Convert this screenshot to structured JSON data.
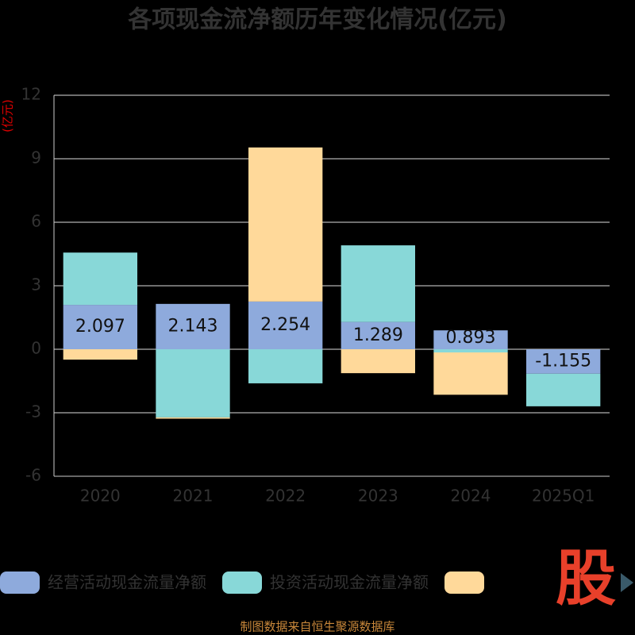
{
  "chart_data": {
    "type": "stacked_bar",
    "title": "各项现金流净额历年变化情况(亿元)",
    "y_label": "(亿元)",
    "categories": [
      "2020",
      "2021",
      "2022",
      "2023",
      "2024",
      "2025Q1"
    ],
    "series": [
      {
        "name": "经营活动现金流量净额",
        "color": "#8eaadc",
        "values": [
          2.097,
          2.143,
          2.254,
          1.289,
          0.893,
          -1.155
        ],
        "labels": true
      },
      {
        "name": "投资活动现金流量净额",
        "color": "#88d8d8",
        "values": [
          2.47,
          -3.22,
          -1.61,
          3.62,
          -0.15,
          -1.54
        ]
      },
      {
        "color": "#ffd99a",
        "values": [
          -0.49,
          -0.06,
          7.28,
          -1.13,
          -2.0,
          0
        ]
      }
    ],
    "ylim": [
      -6,
      12
    ],
    "yticks": [
      -6,
      -3,
      0,
      3,
      6,
      9,
      12
    ],
    "grid": true,
    "watermark": "股",
    "source": "制图数据来自恒生聚源数据库"
  }
}
